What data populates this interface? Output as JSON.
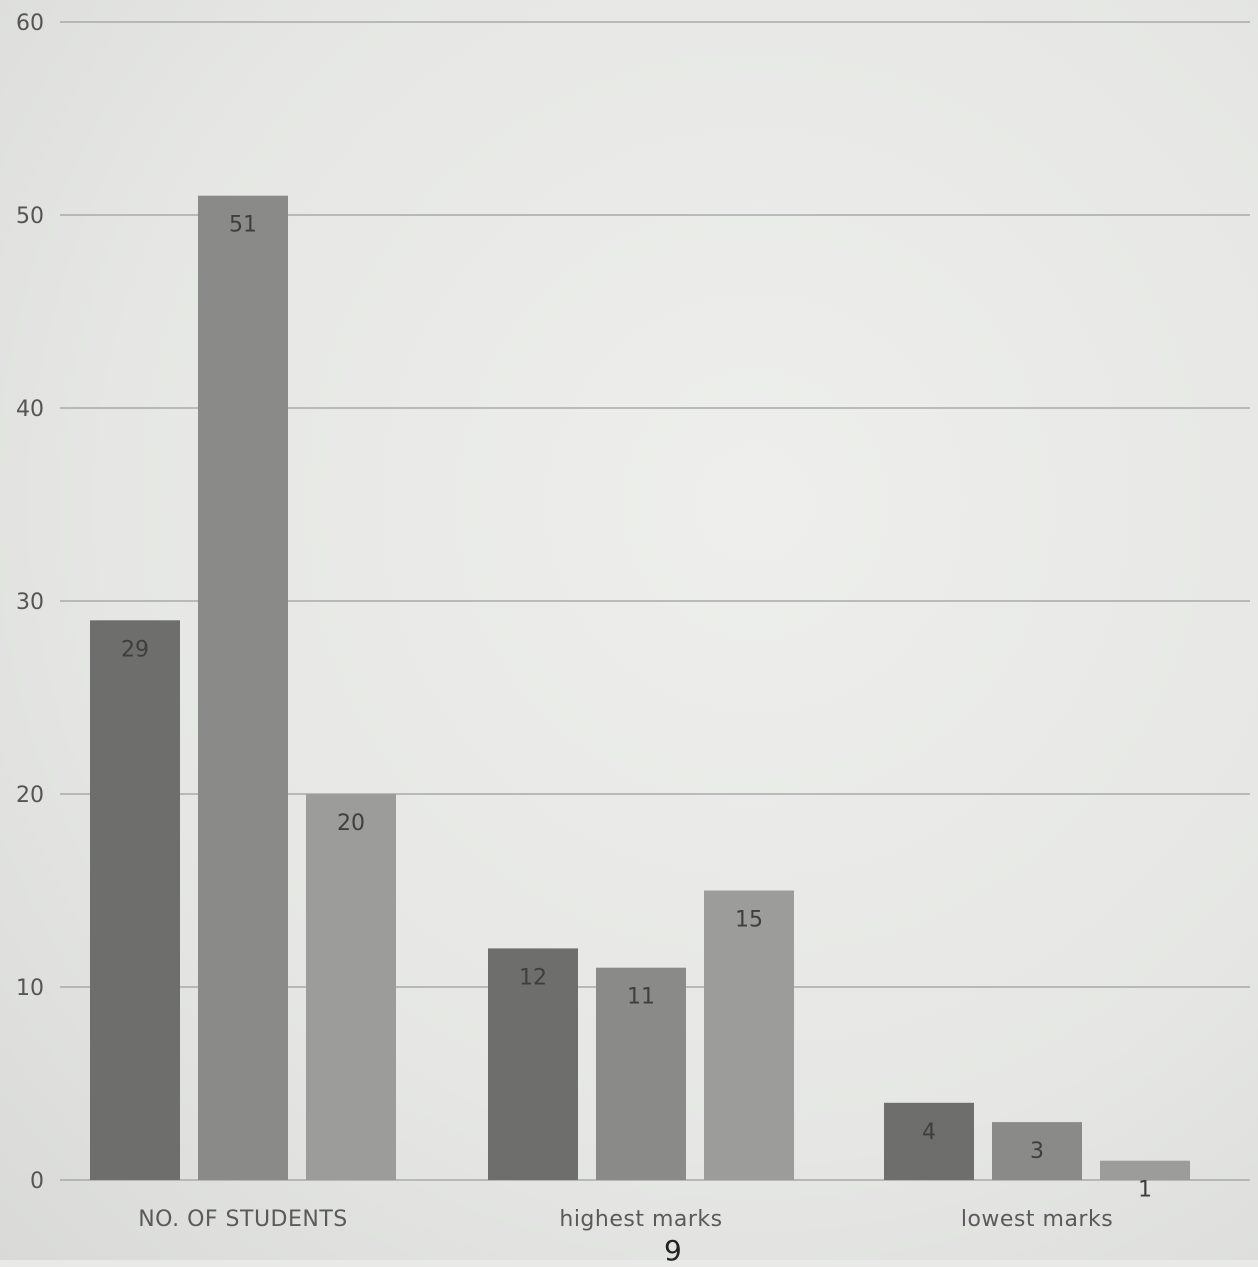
{
  "chart_data": {
    "type": "bar",
    "title": "",
    "xlabel": "",
    "ylabel": "",
    "ylim": [
      0,
      60
    ],
    "yticks": [
      "0",
      "10",
      "20",
      "30",
      "40",
      "50",
      "60"
    ],
    "grid": true,
    "legend": "none",
    "categories": [
      "NO. OF STUDENTS",
      "highest marks",
      "lowest marks"
    ],
    "series": [
      {
        "values": [
          29,
          12,
          4
        ],
        "labels": [
          "29",
          "12",
          "4"
        ],
        "color": "#6e6f6d"
      },
      {
        "values": [
          51,
          11,
          3
        ],
        "labels": [
          "51",
          "11",
          "3"
        ],
        "color": "#8a8b89"
      },
      {
        "values": [
          20,
          15,
          1
        ],
        "labels": [
          "20",
          "15",
          "1"
        ],
        "color": "#9c9d9b"
      }
    ]
  },
  "page_number": "9"
}
